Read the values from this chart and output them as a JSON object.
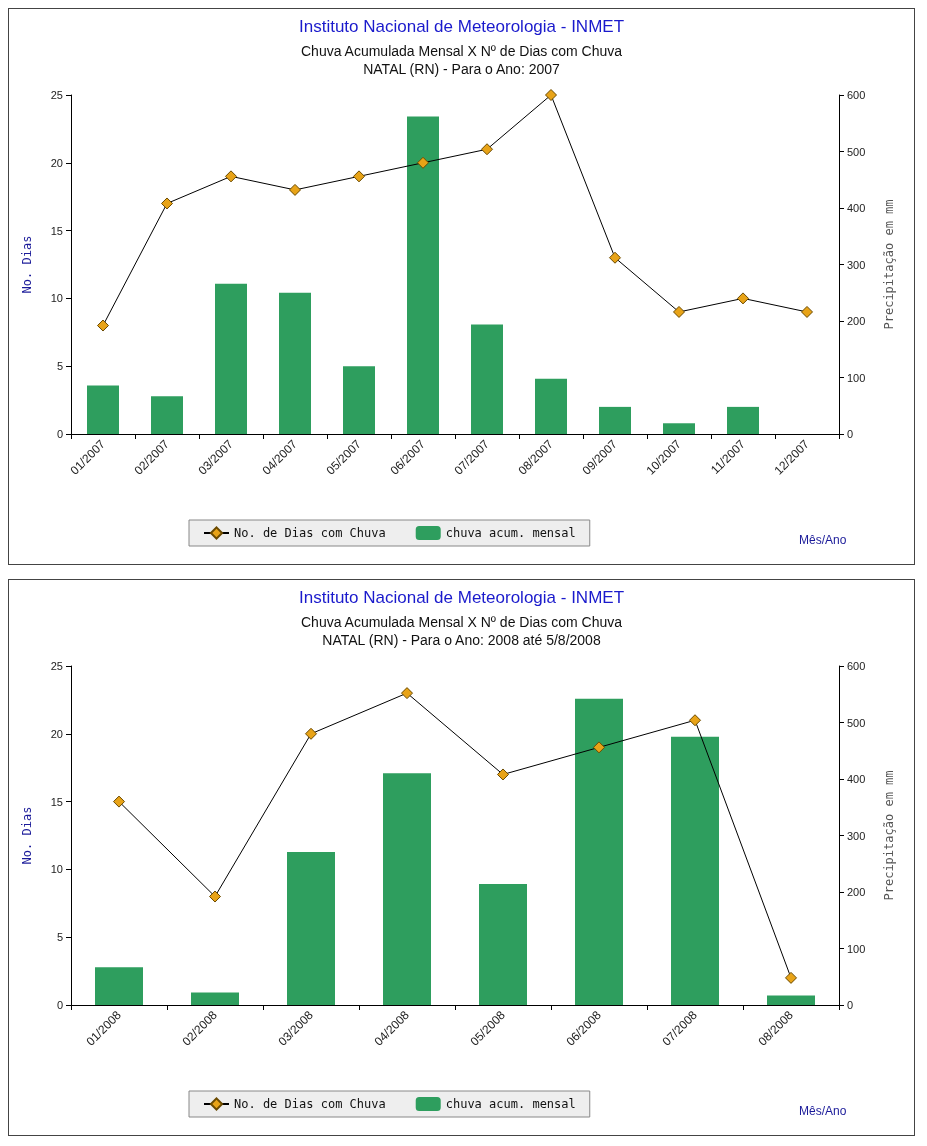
{
  "chart_data": [
    {
      "type": "bar",
      "title": "Instituto Nacional de Meteorologia - INMET",
      "subtitle": "Chuva Acumulada Mensal X Nº de Dias com Chuva\nNATAL (RN) - Para o Ano: 2007",
      "xlabel": "Mês/Ano",
      "ylabel": "No. Dias",
      "y2label": "Precipitação em mm",
      "categories": [
        "01/2007",
        "02/2007",
        "03/2007",
        "04/2007",
        "05/2007",
        "06/2007",
        "07/2007",
        "08/2007",
        "09/2007",
        "10/2007",
        "11/2007",
        "12/2007"
      ],
      "series": [
        {
          "name": "No. de Dias com Chuva",
          "type": "line",
          "color": "#e8a317",
          "values": [
            8,
            17,
            19,
            18,
            19,
            20,
            21,
            25,
            13,
            9,
            10,
            9
          ]
        },
        {
          "name": "chuva acum. mensal",
          "axis": "y2",
          "color": "#2e9e5e",
          "values": [
            86,
            67,
            266,
            250,
            120,
            562,
            194,
            98,
            48,
            19,
            48,
            0
          ]
        }
      ],
      "ylim": [
        0,
        25
      ],
      "yticks": [
        0,
        5,
        10,
        15,
        20,
        25
      ],
      "y2lim": [
        0,
        600
      ],
      "y2ticks": [
        0,
        100,
        200,
        300,
        400,
        500,
        600
      ],
      "legend": "bottom",
      "marker": "diamond",
      "grid": false
    },
    {
      "type": "bar",
      "title": "Instituto Nacional de Meteorologia - INMET",
      "subtitle": "Chuva Acumulada Mensal X Nº de Dias com Chuva\nNATAL (RN) - Para o Ano: 2008 até 5/8/2008",
      "xlabel": "Mês/Ano",
      "ylabel": "No. Dias",
      "y2label": "Precipitação em mm",
      "categories": [
        "01/2008",
        "02/2008",
        "03/2008",
        "04/2008",
        "05/2008",
        "06/2008",
        "07/2008",
        "08/2008"
      ],
      "series": [
        {
          "name": "No. de Dias com Chuva",
          "type": "line",
          "color": "#e8a317",
          "values": [
            15,
            8,
            20,
            23,
            17,
            19,
            21,
            2
          ]
        },
        {
          "name": "chuva acum. mensal",
          "axis": "y2",
          "color": "#2e9e5e",
          "values": [
            67,
            22,
            271,
            410,
            214,
            542,
            475,
            17
          ]
        }
      ],
      "ylim": [
        0,
        25
      ],
      "yticks": [
        0,
        5,
        10,
        15,
        20,
        25
      ],
      "y2lim": [
        0,
        600
      ],
      "y2ticks": [
        0,
        100,
        200,
        300,
        400,
        500,
        600
      ],
      "legend": "bottom",
      "marker": "diamond",
      "grid": false
    }
  ]
}
